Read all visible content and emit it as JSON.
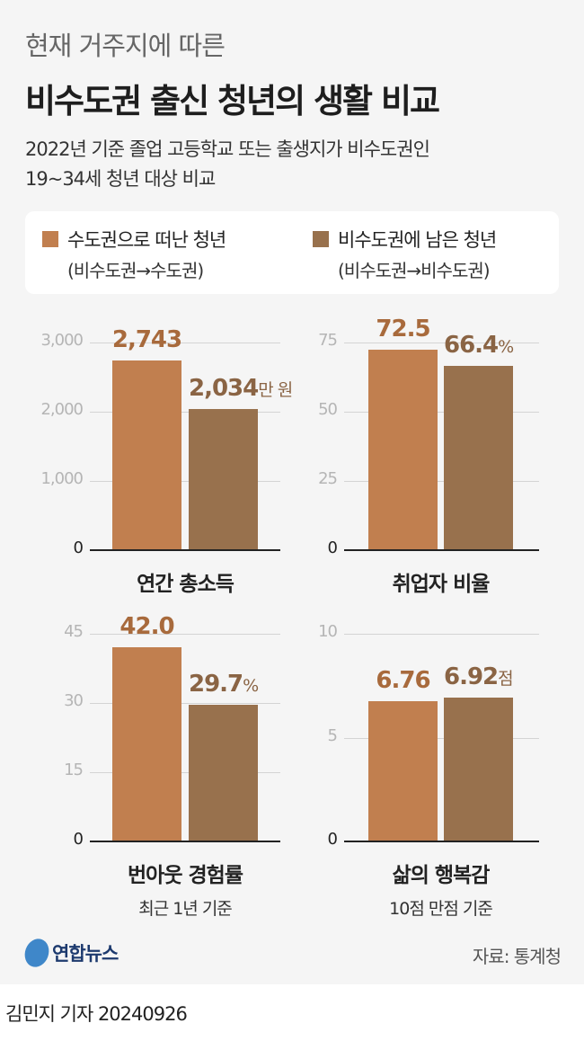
{
  "header": {
    "title_top": "현재 거주지에 따른",
    "title_main": "비수도권 출신 청년의 생활 비교",
    "subtitle_1": "2022년 기준 졸업 고등학교 또는 출생지가 비수도권인",
    "subtitle_2": "19~34세 청년 대상 비교"
  },
  "legend": [
    {
      "label": "수도권으로 떠난 청년",
      "sub": "(비수도권→수도권)",
      "color": "#c17f4f"
    },
    {
      "label": "비수도권에 남은 청년",
      "sub": "(비수도권→비수도권)",
      "color": "#98714d"
    }
  ],
  "colors": {
    "label_orange": "#a86a3c",
    "label_brown": "#8a6444"
  },
  "chart_data": [
    {
      "type": "bar",
      "title": "연간 총소득",
      "subtitle": "",
      "ylim": [
        0,
        3000
      ],
      "ticks": [
        "0",
        "1,000",
        "2,000",
        "3,000"
      ],
      "tick_values": [
        0,
        1000,
        2000,
        3000
      ],
      "values": [
        2743,
        2034
      ],
      "value_labels": [
        "2,743",
        "2,034"
      ],
      "unit": "만 원"
    },
    {
      "type": "bar",
      "title": "취업자 비율",
      "subtitle": "",
      "ylim": [
        0,
        75
      ],
      "ticks": [
        "0",
        "25",
        "50",
        "75"
      ],
      "tick_values": [
        0,
        25,
        50,
        75
      ],
      "values": [
        72.5,
        66.4
      ],
      "value_labels": [
        "72.5",
        "66.4"
      ],
      "unit": "%"
    },
    {
      "type": "bar",
      "title": "번아웃 경험률",
      "subtitle": "최근 1년 기준",
      "ylim": [
        0,
        45
      ],
      "ticks": [
        "0",
        "15",
        "30",
        "45"
      ],
      "tick_values": [
        0,
        15,
        30,
        45
      ],
      "values": [
        42.0,
        29.7
      ],
      "value_labels": [
        "42.0",
        "29.7"
      ],
      "unit": "%"
    },
    {
      "type": "bar",
      "title": "삶의 행복감",
      "subtitle": "10점 만점 기준",
      "ylim": [
        0,
        10
      ],
      "ticks": [
        "0",
        "5",
        "10"
      ],
      "tick_values": [
        0,
        5,
        10
      ],
      "values": [
        6.76,
        6.92
      ],
      "value_labels": [
        "6.76",
        "6.92"
      ],
      "unit": "점"
    }
  ],
  "footer": {
    "logo": "연합뉴스",
    "source": "자료: 통계청",
    "byline": "김민지 기자  20240926"
  }
}
